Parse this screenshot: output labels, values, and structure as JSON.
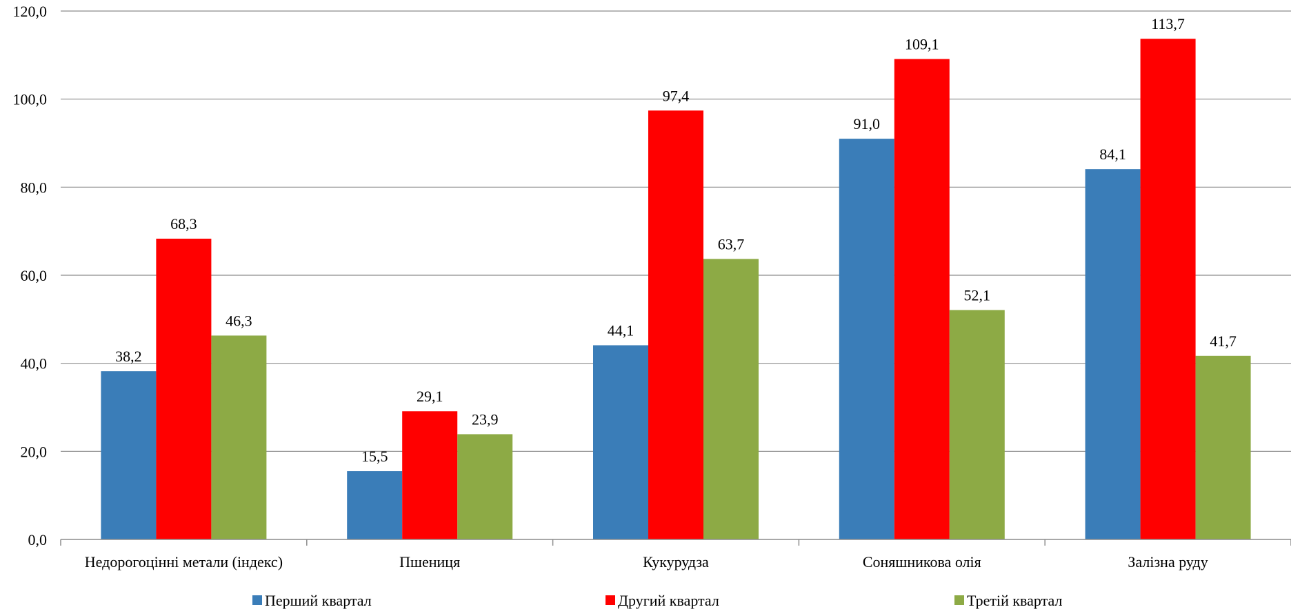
{
  "chart_data": {
    "type": "bar",
    "title": "",
    "xlabel": "",
    "ylabel": "",
    "ylim": [
      0,
      120
    ],
    "ytick_step": 20,
    "grid": true,
    "legend_position": "bottom",
    "categories": [
      "Недорогоцінні метали (індекс)",
      "Пшениця",
      "Кукурудза",
      "Соняшникова олія",
      "Залізна руду"
    ],
    "series": [
      {
        "name": "Перший квартал",
        "color": "#3A7DB8",
        "values": [
          38.2,
          15.5,
          44.1,
          91.0,
          84.1
        ]
      },
      {
        "name": "Другий квартал",
        "color": "#FF0000",
        "values": [
          68.3,
          29.1,
          97.4,
          109.1,
          113.7
        ]
      },
      {
        "name": "Третій квартал",
        "color": "#8DAA45",
        "values": [
          46.3,
          23.9,
          63.7,
          52.1,
          41.7
        ]
      }
    ]
  }
}
